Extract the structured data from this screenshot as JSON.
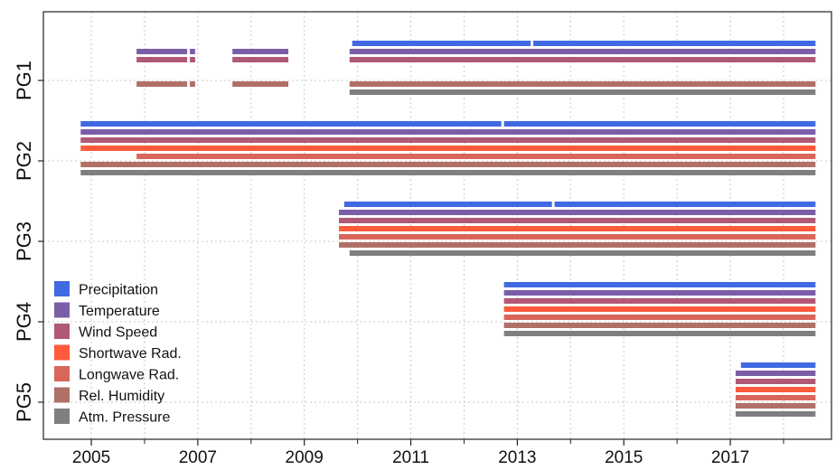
{
  "chart_data": {
    "type": "timeline",
    "x_ticks": [
      "2005",
      "2007",
      "2009",
      "2011",
      "2013",
      "2015",
      "2017"
    ],
    "x_tick_values": [
      2005,
      2007,
      2009,
      2011,
      2013,
      2015,
      2017
    ],
    "xlim": [
      2004.1,
      2018.9
    ],
    "grid": true,
    "legend_position": "bottom-left",
    "variables": [
      {
        "key": "precip",
        "label": "Precipitation",
        "color": "#4169e1"
      },
      {
        "key": "temp",
        "label": "Temperature",
        "color": "#7b5ea8"
      },
      {
        "key": "wind",
        "label": "Wind Speed",
        "color": "#b05878"
      },
      {
        "key": "sw",
        "label": "Shortwave Rad.",
        "color": "#ff5a3c"
      },
      {
        "key": "lw",
        "label": "Longwave Rad.",
        "color": "#d9665a"
      },
      {
        "key": "rh",
        "label": "Rel. Humidity",
        "color": "#b07068"
      },
      {
        "key": "pres",
        "label": "Atm. Pressure",
        "color": "#7f7f7f"
      }
    ],
    "stations": [
      {
        "name": "PG1",
        "records": [
          {
            "variable": "precip",
            "segments": [
              [
                2009.9,
                2013.25
              ],
              [
                2013.3,
                2018.6
              ]
            ]
          },
          {
            "variable": "temp",
            "segments": [
              [
                2005.85,
                2006.8
              ],
              [
                2006.85,
                2006.95
              ],
              [
                2007.65,
                2008.7
              ],
              [
                2009.85,
                2018.6
              ]
            ]
          },
          {
            "variable": "wind",
            "segments": [
              [
                2005.85,
                2006.8
              ],
              [
                2006.85,
                2006.95
              ],
              [
                2007.65,
                2008.7
              ],
              [
                2009.85,
                2018.6
              ]
            ]
          },
          {
            "variable": "sw",
            "segments": []
          },
          {
            "variable": "lw",
            "segments": []
          },
          {
            "variable": "rh",
            "segments": [
              [
                2005.85,
                2006.8
              ],
              [
                2006.85,
                2006.95
              ],
              [
                2007.65,
                2008.7
              ],
              [
                2009.85,
                2018.6
              ]
            ]
          },
          {
            "variable": "pres",
            "segments": [
              [
                2009.85,
                2018.6
              ]
            ]
          }
        ]
      },
      {
        "name": "PG2",
        "records": [
          {
            "variable": "precip",
            "segments": [
              [
                2004.8,
                2012.7
              ],
              [
                2012.75,
                2018.6
              ]
            ]
          },
          {
            "variable": "temp",
            "segments": [
              [
                2004.8,
                2018.6
              ]
            ]
          },
          {
            "variable": "wind",
            "segments": [
              [
                2004.8,
                2018.6
              ]
            ]
          },
          {
            "variable": "sw",
            "segments": [
              [
                2004.8,
                2018.6
              ]
            ]
          },
          {
            "variable": "lw",
            "segments": [
              [
                2005.85,
                2018.6
              ]
            ]
          },
          {
            "variable": "rh",
            "segments": [
              [
                2004.8,
                2018.6
              ]
            ]
          },
          {
            "variable": "pres",
            "segments": [
              [
                2004.8,
                2018.6
              ]
            ]
          }
        ]
      },
      {
        "name": "PG3",
        "records": [
          {
            "variable": "precip",
            "segments": [
              [
                2009.75,
                2013.65
              ],
              [
                2013.7,
                2018.6
              ]
            ]
          },
          {
            "variable": "temp",
            "segments": [
              [
                2009.65,
                2018.6
              ]
            ]
          },
          {
            "variable": "wind",
            "segments": [
              [
                2009.65,
                2018.6
              ]
            ]
          },
          {
            "variable": "sw",
            "segments": [
              [
                2009.65,
                2018.6
              ]
            ]
          },
          {
            "variable": "lw",
            "segments": [
              [
                2009.65,
                2018.6
              ]
            ]
          },
          {
            "variable": "rh",
            "segments": [
              [
                2009.65,
                2018.6
              ]
            ]
          },
          {
            "variable": "pres",
            "segments": [
              [
                2009.85,
                2018.6
              ]
            ]
          }
        ]
      },
      {
        "name": "PG4",
        "records": [
          {
            "variable": "precip",
            "segments": [
              [
                2012.75,
                2018.6
              ]
            ]
          },
          {
            "variable": "temp",
            "segments": [
              [
                2012.75,
                2018.6
              ]
            ]
          },
          {
            "variable": "wind",
            "segments": [
              [
                2012.75,
                2018.6
              ]
            ]
          },
          {
            "variable": "sw",
            "segments": [
              [
                2012.75,
                2018.6
              ]
            ]
          },
          {
            "variable": "lw",
            "segments": [
              [
                2012.75,
                2018.6
              ]
            ]
          },
          {
            "variable": "rh",
            "segments": [
              [
                2012.75,
                2018.6
              ]
            ]
          },
          {
            "variable": "pres",
            "segments": [
              [
                2012.75,
                2018.6
              ]
            ]
          }
        ]
      },
      {
        "name": "PG5",
        "records": [
          {
            "variable": "precip",
            "segments": [
              [
                2017.2,
                2018.6
              ]
            ]
          },
          {
            "variable": "temp",
            "segments": [
              [
                2017.1,
                2018.6
              ]
            ]
          },
          {
            "variable": "wind",
            "segments": [
              [
                2017.1,
                2018.6
              ]
            ]
          },
          {
            "variable": "sw",
            "segments": [
              [
                2017.1,
                2018.6
              ]
            ]
          },
          {
            "variable": "lw",
            "segments": [
              [
                2017.1,
                2018.6
              ]
            ]
          },
          {
            "variable": "rh",
            "segments": [
              [
                2017.1,
                2018.6
              ]
            ]
          },
          {
            "variable": "pres",
            "segments": [
              [
                2017.1,
                2018.6
              ]
            ]
          }
        ]
      }
    ]
  }
}
